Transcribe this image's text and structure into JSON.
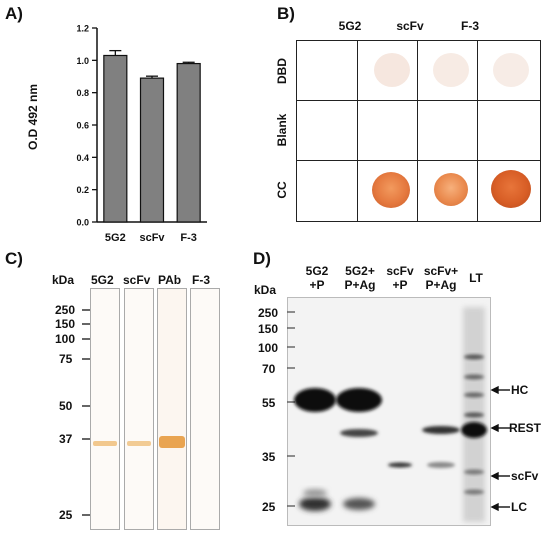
{
  "panels": {
    "a": "A)",
    "b": "B)",
    "c": "C)",
    "d": "D)"
  },
  "chart_data": {
    "type": "bar",
    "categories": [
      "5G2",
      "scFv",
      "F-3"
    ],
    "values": [
      1.03,
      0.89,
      0.98
    ],
    "errors": [
      0.03,
      0.012,
      0.008
    ],
    "ylabel": "O.D 492 nm",
    "ylim": [
      0,
      1.2
    ],
    "yticks": [
      "0.0",
      "0.2",
      "0.4",
      "0.6",
      "0.8",
      "1.0",
      "1.2"
    ],
    "bar_color": "#808080"
  },
  "dot_blot": {
    "columns": [
      "5G2",
      "scFv",
      "F-3"
    ],
    "rows": [
      "DBD",
      "Blank",
      "CC"
    ]
  },
  "western_c": {
    "kda_title": "kDa",
    "markers": [
      "250",
      "150",
      "100",
      "75",
      "50",
      "37",
      "25"
    ],
    "lanes": [
      "5G2",
      "scFv",
      "PAb",
      "F-3"
    ]
  },
  "western_d": {
    "kda_title": "kDa",
    "markers": [
      "250",
      "150",
      "100",
      "70",
      "55",
      "35",
      "25"
    ],
    "lanes": [
      {
        "line1": "5G2",
        "line2": "+P"
      },
      {
        "line1": "5G2+",
        "line2": "P+Ag"
      },
      {
        "line1": "scFv",
        "line2": "+P"
      },
      {
        "line1": "scFv+",
        "line2": "P+Ag"
      },
      {
        "line1": "LT",
        "line2": ""
      }
    ],
    "bands": [
      "HC",
      "REST",
      "scFv",
      "LC"
    ]
  }
}
